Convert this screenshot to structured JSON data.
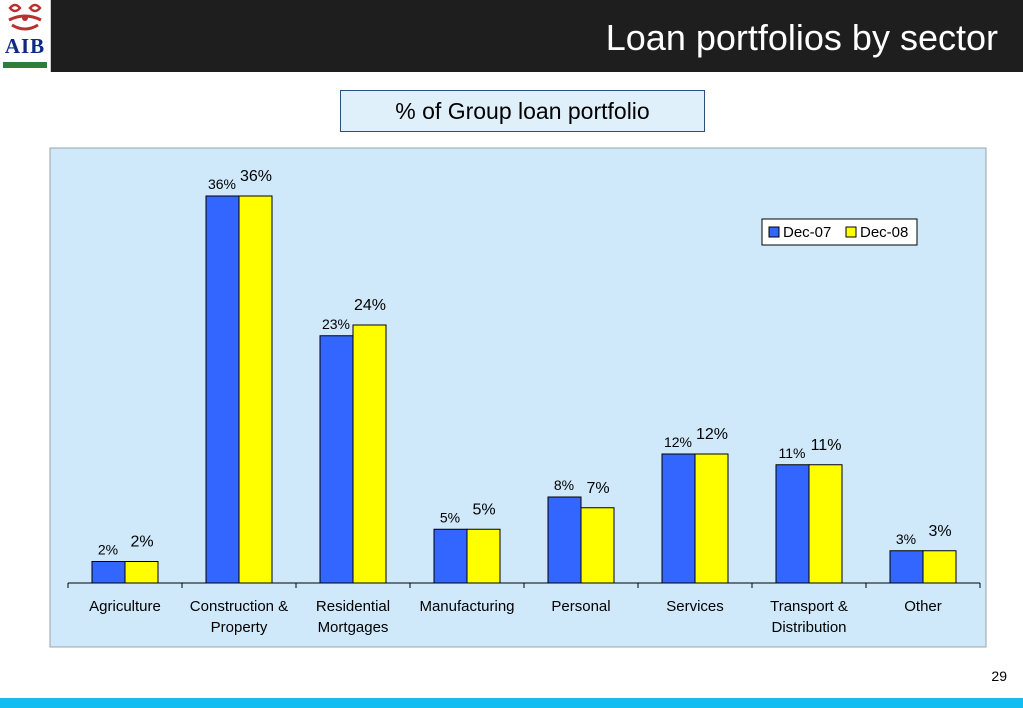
{
  "slide": {
    "title": "Loan portfolios by sector",
    "subtitle": "% of Group loan portfolio",
    "page_number": "29",
    "logo_text": "AIB"
  },
  "colors": {
    "header_bg": "#1e1e1e",
    "plot_bg": "#cfe9fb",
    "dec07": "#3366ff",
    "dec08": "#ffff00",
    "footer": "#13bdf0",
    "logo_red": "#b8312f",
    "logo_blue": "#0e2a84",
    "logo_green": "#2f7d3a"
  },
  "chart_data": {
    "type": "bar",
    "title": "",
    "xlabel": "",
    "ylabel": "",
    "ylim": [
      0,
      40
    ],
    "grid": false,
    "legend_position": "top-right",
    "categories": [
      [
        "Agriculture"
      ],
      [
        "Construction &",
        "Property"
      ],
      [
        "Residential",
        "Mortgages"
      ],
      [
        "Manufacturing"
      ],
      [
        "Personal"
      ],
      [
        "Services"
      ],
      [
        "Transport &",
        "Distribution"
      ],
      [
        "Other"
      ]
    ],
    "series": [
      {
        "name": "Dec-07",
        "color": "#3366ff",
        "values": [
          2,
          36,
          23,
          5,
          8,
          12,
          11,
          3
        ],
        "labels": [
          "2%",
          "36%",
          "23%",
          "5%",
          "8%",
          "12%",
          "11%",
          "3%"
        ]
      },
      {
        "name": "Dec-08",
        "color": "#ffff00",
        "values": [
          2,
          36,
          24,
          5,
          7,
          12,
          11,
          3
        ],
        "labels": [
          "2%",
          "36%",
          "24%",
          "5%",
          "7%",
          "12%",
          "11%",
          "3%"
        ]
      }
    ]
  }
}
